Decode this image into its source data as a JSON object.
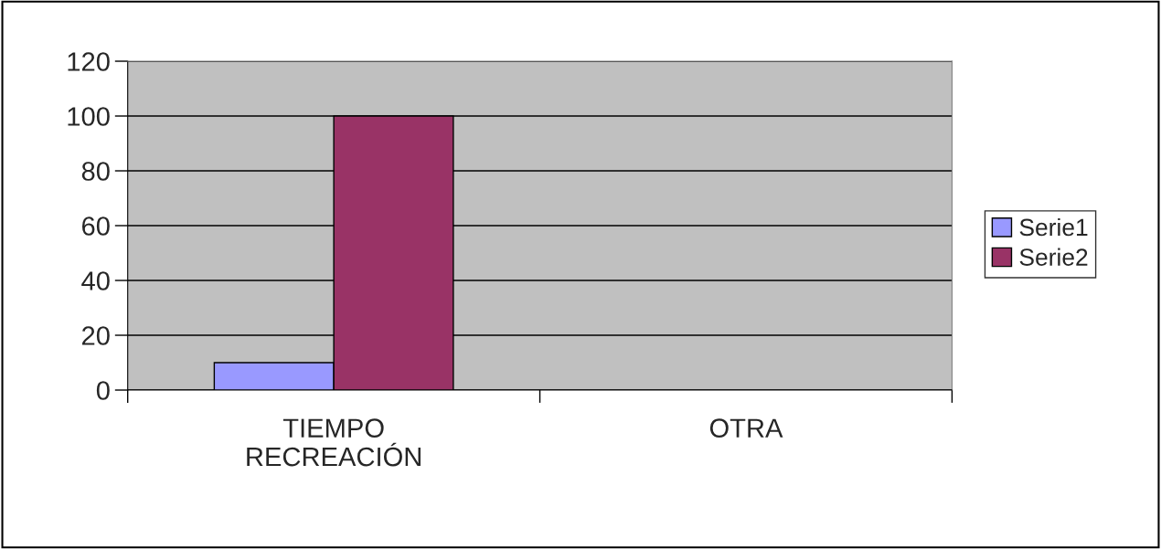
{
  "chart_data": {
    "type": "bar",
    "categories": [
      "TIEMPO RECREACIÓN",
      "OTRA"
    ],
    "series": [
      {
        "name": "Serie1",
        "color": "#9999ff",
        "values": [
          10,
          null
        ]
      },
      {
        "name": "Serie2",
        "color": "#993366",
        "values": [
          100,
          null
        ]
      }
    ],
    "ylim": [
      0,
      120
    ],
    "yticks": [
      0,
      20,
      40,
      60,
      80,
      100,
      120
    ],
    "grid": "y",
    "legend": "right"
  }
}
